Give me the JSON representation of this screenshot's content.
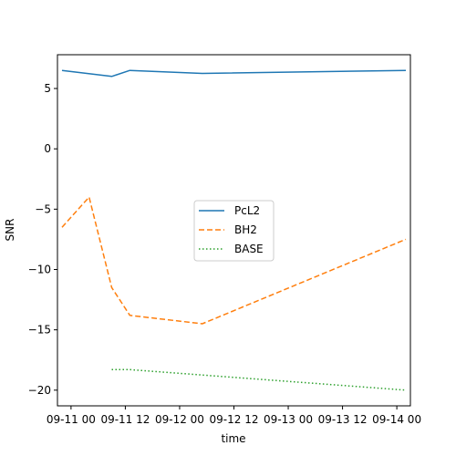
{
  "chart_data": {
    "type": "line",
    "xlabel": "time",
    "ylabel": "SNR",
    "x_axis_kind": "datetime",
    "xlim": [
      "2023-09-10T21:00",
      "2023-09-14T03:00"
    ],
    "ylim": [
      -21.3,
      7.8
    ],
    "x_ticks": [
      {
        "value": "2023-09-11T00:00",
        "label": "09-11 00"
      },
      {
        "value": "2023-09-11T12:00",
        "label": "09-11 12"
      },
      {
        "value": "2023-09-12T00:00",
        "label": "09-12 00"
      },
      {
        "value": "2023-09-12T12:00",
        "label": "09-12 12"
      },
      {
        "value": "2023-09-13T00:00",
        "label": "09-13 00"
      },
      {
        "value": "2023-09-13T12:00",
        "label": "09-13 12"
      },
      {
        "value": "2023-09-14T00:00",
        "label": "09-14 00"
      }
    ],
    "y_ticks": [
      5,
      0,
      -5,
      -10,
      -15,
      -20
    ],
    "grid": false,
    "legend_position": "center",
    "series": [
      {
        "name": "PcL2",
        "color": "#1f77b4",
        "style": "solid",
        "points": [
          {
            "x": "2023-09-10T22:00",
            "y": 6.5
          },
          {
            "x": "2023-09-11T09:00",
            "y": 6.0
          },
          {
            "x": "2023-09-11T13:00",
            "y": 6.5
          },
          {
            "x": "2023-09-12T05:00",
            "y": 6.25
          },
          {
            "x": "2023-09-14T02:00",
            "y": 6.5
          }
        ]
      },
      {
        "name": "BH2",
        "color": "#ff7f0e",
        "style": "dashed",
        "points": [
          {
            "x": "2023-09-10T22:00",
            "y": -6.5
          },
          {
            "x": "2023-09-11T04:00",
            "y": -4.0
          },
          {
            "x": "2023-09-11T09:00",
            "y": -11.5
          },
          {
            "x": "2023-09-11T13:00",
            "y": -13.8
          },
          {
            "x": "2023-09-12T05:00",
            "y": -14.5
          },
          {
            "x": "2023-09-14T02:00",
            "y": -7.5
          }
        ]
      },
      {
        "name": "BASE",
        "color": "#2ca02c",
        "style": "dotted",
        "points": [
          {
            "x": "2023-09-11T09:00",
            "y": -18.3
          },
          {
            "x": "2023-09-11T13:00",
            "y": -18.3
          },
          {
            "x": "2023-09-14T02:00",
            "y": -20.0
          }
        ]
      }
    ]
  }
}
